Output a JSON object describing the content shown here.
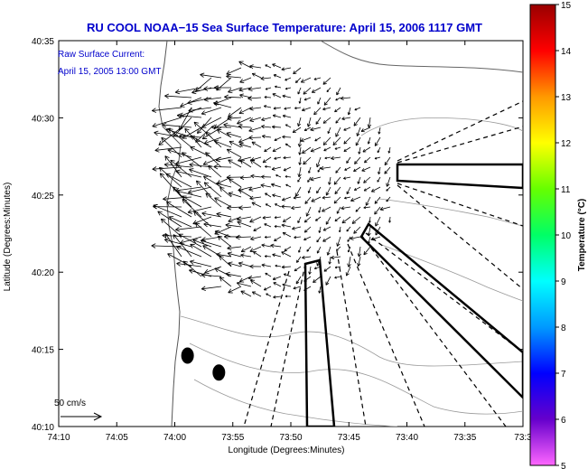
{
  "chart_data": {
    "type": "scatter",
    "title": "RU COOL  NOAA−15  Sea Surface Temperature:  April 15, 2006 1117 GMT",
    "annotation_lines": [
      "Raw Surface Current:",
      "April 15, 2005 13:00 GMT"
    ],
    "scale_label": "50 cm/s",
    "xlabel": "Longitude (Degrees:Minutes)",
    "ylabel": "Latitude (Degrees:Minutes)",
    "x_ticks": [
      "74:10",
      "74:05",
      "74:00",
      "73:55",
      "73:50",
      "73:45",
      "73:40",
      "73:35",
      "73:3"
    ],
    "y_ticks": [
      "40:35",
      "40:30",
      "40:25",
      "40:20",
      "40:15",
      "40:10"
    ],
    "xlim": [
      -74.1667,
      -73.5
    ],
    "ylim": [
      40.1667,
      40.5833
    ],
    "colorbar": {
      "label": "Temperature (°C)",
      "ticks": [
        "15",
        "14",
        "13",
        "12",
        "11",
        "10",
        "9",
        "8",
        "7",
        "6",
        "5"
      ],
      "range": [
        5,
        15
      ],
      "colors": [
        "#ff66ff",
        "#6600cc",
        "#0000ff",
        "#0099ff",
        "#00ffff",
        "#00ff66",
        "#66ff00",
        "#ffff00",
        "#ff9900",
        "#ff0000",
        "#990000"
      ]
    },
    "markers": [
      {
        "lon": -73.9817,
        "lat": 40.2433
      },
      {
        "lon": -73.9367,
        "lat": 40.225
      }
    ],
    "grid": false,
    "legend": "none"
  }
}
